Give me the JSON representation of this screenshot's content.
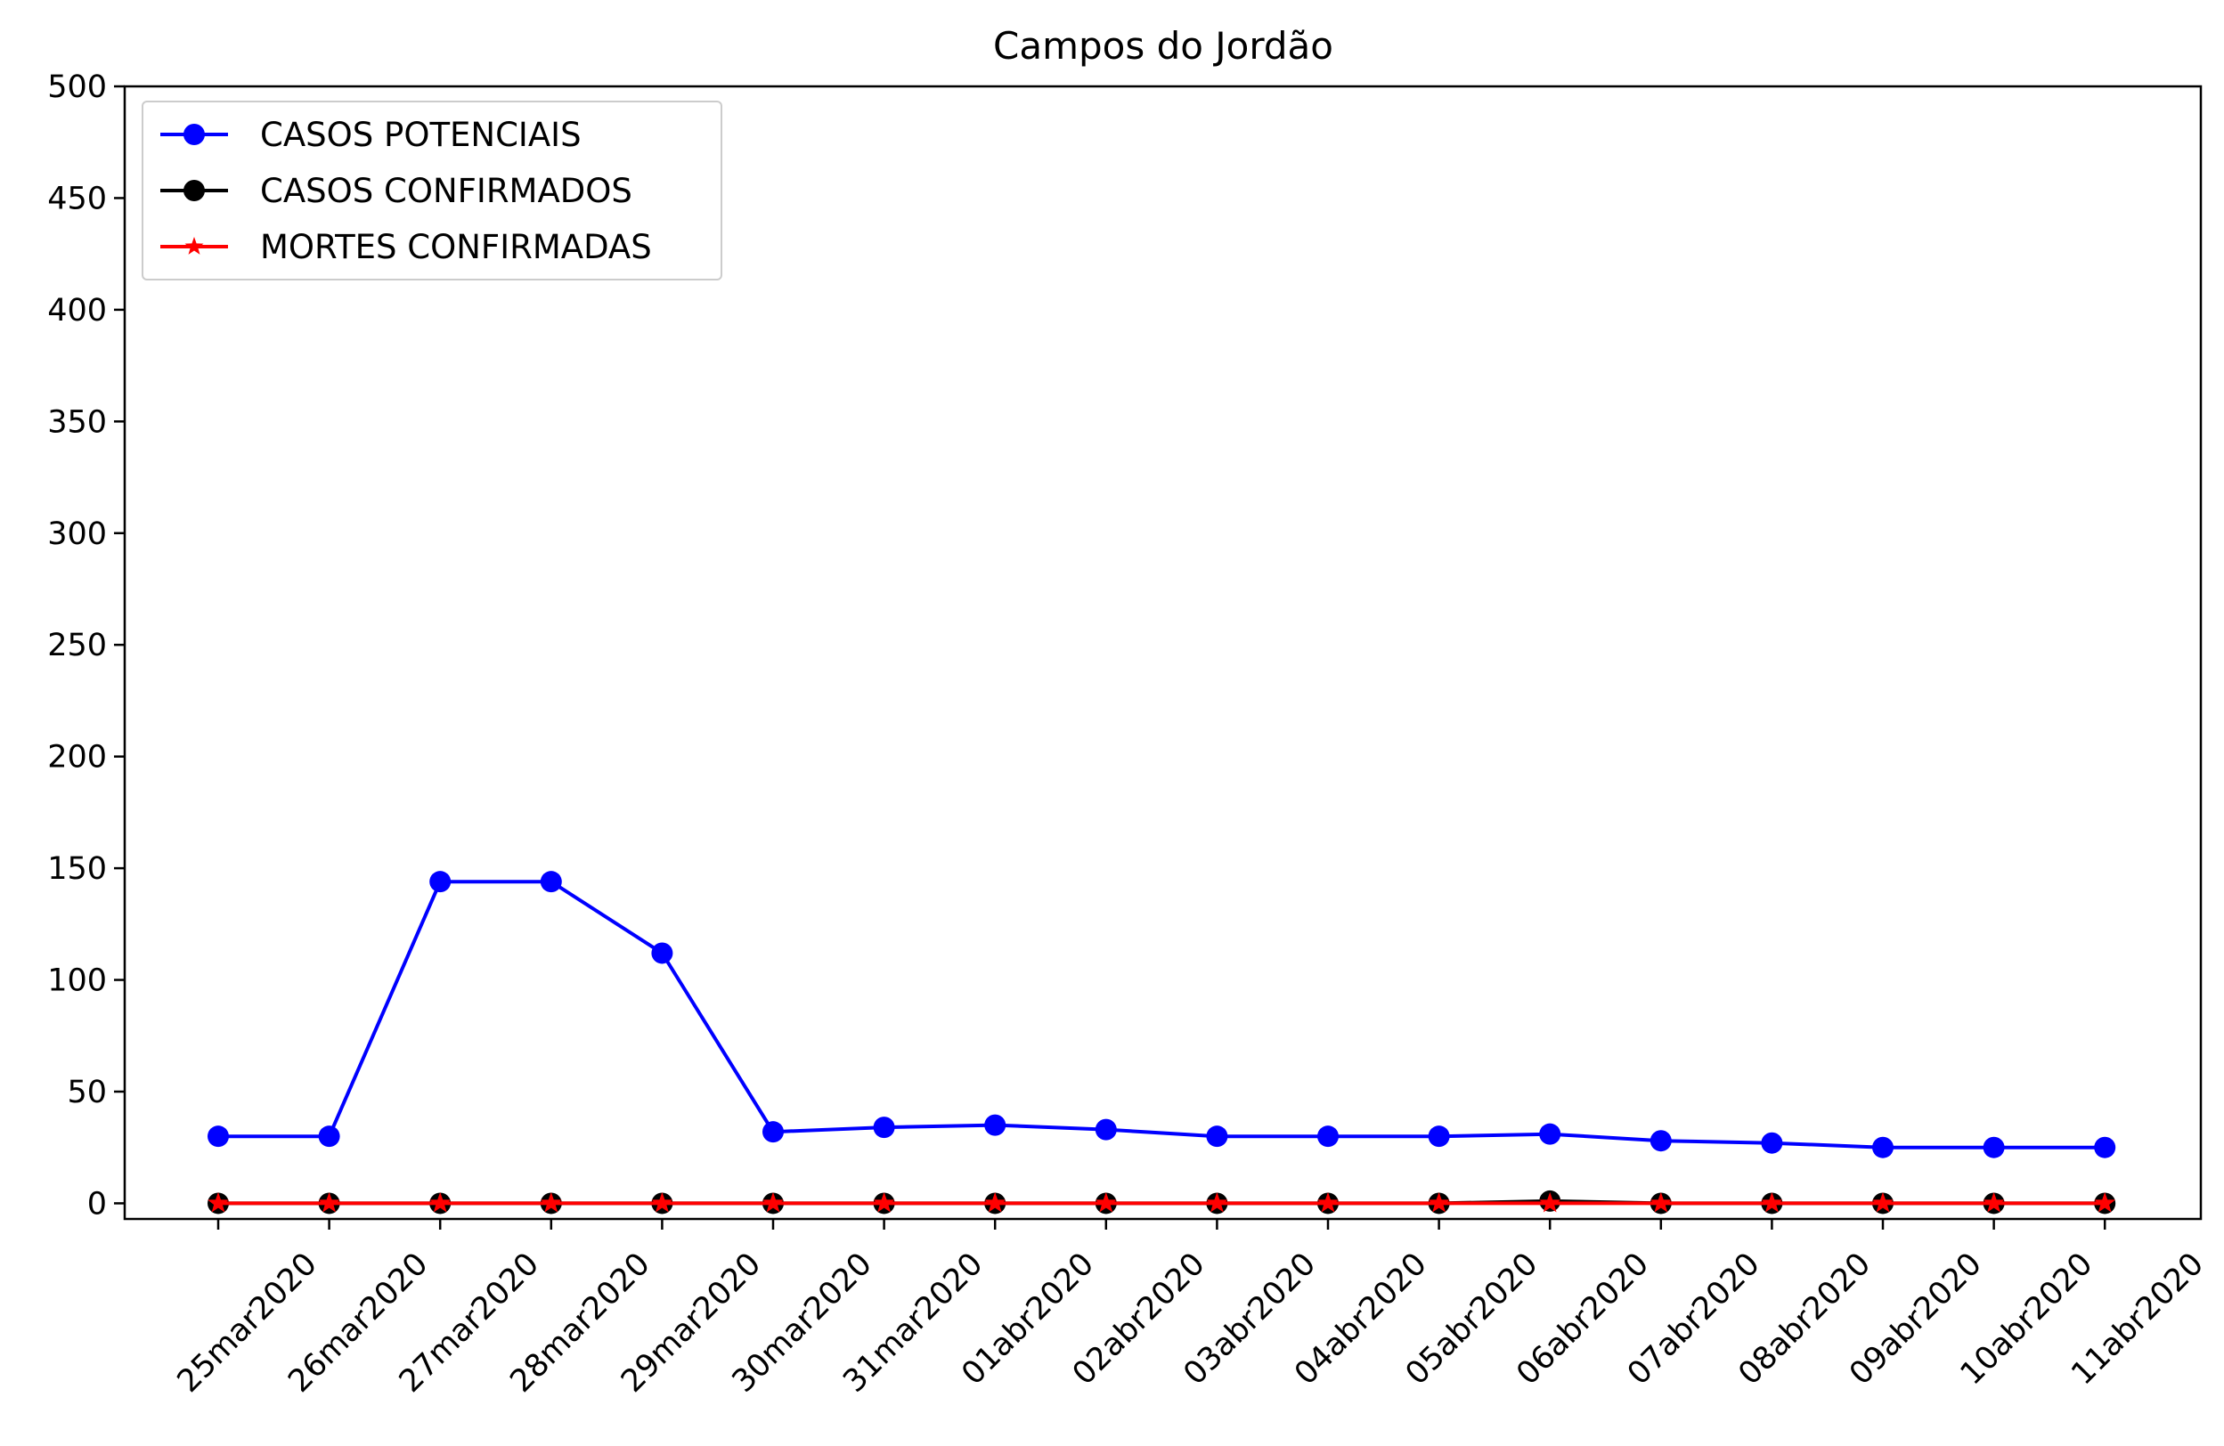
{
  "chart_data": {
    "type": "line",
    "title": "Campos do Jordão",
    "xlabel": "",
    "ylabel": "",
    "categories": [
      "25mar2020",
      "26mar2020",
      "27mar2020",
      "28mar2020",
      "29mar2020",
      "30mar2020",
      "31mar2020",
      "01abr2020",
      "02abr2020",
      "03abr2020",
      "04abr2020",
      "05abr2020",
      "06abr2020",
      "07abr2020",
      "08abr2020",
      "09abr2020",
      "10abr2020",
      "11abr2020"
    ],
    "yticks": [
      "0",
      "50",
      "100",
      "150",
      "200",
      "250",
      "300",
      "350",
      "400",
      "450",
      "500"
    ],
    "ylim": [
      -7,
      500
    ],
    "grid": false,
    "legend_position": "top-left",
    "series": [
      {
        "name": "CASOS POTENCIAIS",
        "color": "#0000ff",
        "marker": "circle",
        "values": [
          30,
          30,
          144,
          144,
          112,
          32,
          34,
          35,
          33,
          30,
          30,
          30,
          31,
          28,
          27,
          25,
          25,
          25
        ]
      },
      {
        "name": "CASOS CONFIRMADOS",
        "color": "#000000",
        "marker": "circle",
        "values": [
          0,
          0,
          0,
          0,
          0,
          0,
          0,
          0,
          0,
          0,
          0,
          0,
          1,
          0,
          0,
          0,
          0,
          0
        ]
      },
      {
        "name": "MORTES CONFIRMADAS",
        "color": "#ff0000",
        "marker": "star",
        "values": [
          0,
          0,
          0,
          0,
          0,
          0,
          0,
          0,
          0,
          0,
          0,
          0,
          0,
          0,
          0,
          0,
          0,
          0
        ]
      }
    ]
  }
}
